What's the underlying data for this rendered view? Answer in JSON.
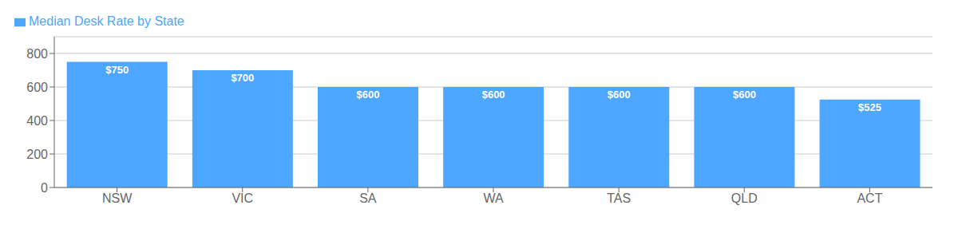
{
  "chart_data": {
    "type": "bar",
    "categories": [
      "NSW",
      "VIC",
      "SA",
      "WA",
      "TAS",
      "QLD",
      "ACT"
    ],
    "series": [
      {
        "name": "Median Desk Rate by State",
        "color": "#4DA6FF",
        "values": [
          750,
          700,
          600,
          600,
          600,
          600,
          525
        ],
        "value_labels": [
          "$750",
          "$700",
          "$600",
          "$600",
          "$600",
          "$600",
          "$525"
        ]
      }
    ],
    "ylim": [
      0,
      900
    ],
    "yticks": [
      0,
      200,
      400,
      600,
      800
    ],
    "grid": true,
    "legend": "upper left",
    "data_labels": true
  }
}
